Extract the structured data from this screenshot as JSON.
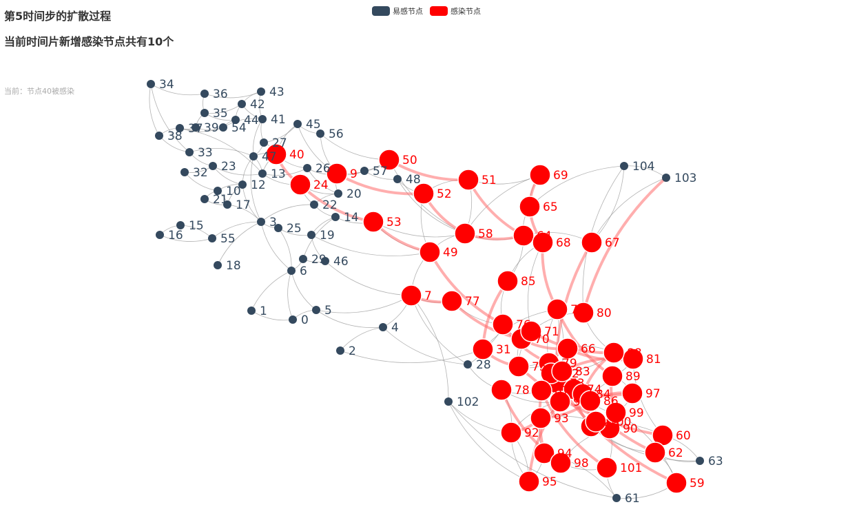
{
  "title": "第5时间步的扩散过程",
  "subtitle": "当前时间片新增感染节点共有10个",
  "status": "当前：节点40被感染",
  "legend": [
    {
      "name": "易感节点",
      "color": "#34495e"
    },
    {
      "name": "感染节点",
      "color": "#ff0000"
    }
  ],
  "colors": {
    "susceptible": "#34495e",
    "infected": "#ff0000",
    "edge": "#888888",
    "infection_edge": "#ff6b6b"
  },
  "nodes": [
    {
      "id": "0",
      "s": "S"
    },
    {
      "id": "1",
      "s": "S"
    },
    {
      "id": "2",
      "s": "S"
    },
    {
      "id": "3",
      "s": "S"
    },
    {
      "id": "4",
      "s": "S"
    },
    {
      "id": "5",
      "s": "S"
    },
    {
      "id": "6",
      "s": "S"
    },
    {
      "id": "7",
      "s": "I"
    },
    {
      "id": "9",
      "s": "I"
    },
    {
      "id": "10",
      "s": "S"
    },
    {
      "id": "12",
      "s": "S"
    },
    {
      "id": "13",
      "s": "S"
    },
    {
      "id": "14",
      "s": "S"
    },
    {
      "id": "15",
      "s": "S"
    },
    {
      "id": "16",
      "s": "S"
    },
    {
      "id": "17",
      "s": "S"
    },
    {
      "id": "18",
      "s": "S"
    },
    {
      "id": "19",
      "s": "S"
    },
    {
      "id": "20",
      "s": "S"
    },
    {
      "id": "21",
      "s": "S"
    },
    {
      "id": "22",
      "s": "S"
    },
    {
      "id": "23",
      "s": "S"
    },
    {
      "id": "24",
      "s": "I"
    },
    {
      "id": "25",
      "s": "S"
    },
    {
      "id": "26",
      "s": "S"
    },
    {
      "id": "27",
      "s": "S"
    },
    {
      "id": "28",
      "s": "S"
    },
    {
      "id": "29",
      "s": "S"
    },
    {
      "id": "31",
      "s": "I"
    },
    {
      "id": "32",
      "s": "S"
    },
    {
      "id": "33",
      "s": "S"
    },
    {
      "id": "34",
      "s": "S"
    },
    {
      "id": "35",
      "s": "S"
    },
    {
      "id": "36",
      "s": "S"
    },
    {
      "id": "37",
      "s": "S"
    },
    {
      "id": "38",
      "s": "S"
    },
    {
      "id": "39",
      "s": "S"
    },
    {
      "id": "40",
      "s": "I"
    },
    {
      "id": "41",
      "s": "S"
    },
    {
      "id": "42",
      "s": "S"
    },
    {
      "id": "43",
      "s": "S"
    },
    {
      "id": "44",
      "s": "S"
    },
    {
      "id": "45",
      "s": "S"
    },
    {
      "id": "46",
      "s": "S"
    },
    {
      "id": "47",
      "s": "S"
    },
    {
      "id": "48",
      "s": "S"
    },
    {
      "id": "49",
      "s": "I"
    },
    {
      "id": "50",
      "s": "I"
    },
    {
      "id": "51",
      "s": "I"
    },
    {
      "id": "52",
      "s": "I"
    },
    {
      "id": "53",
      "s": "I"
    },
    {
      "id": "54",
      "s": "S"
    },
    {
      "id": "55",
      "s": "S"
    },
    {
      "id": "56",
      "s": "S"
    },
    {
      "id": "57",
      "s": "S"
    },
    {
      "id": "58",
      "s": "I"
    },
    {
      "id": "59",
      "s": "I"
    },
    {
      "id": "60",
      "s": "I"
    },
    {
      "id": "61",
      "s": "S"
    },
    {
      "id": "62",
      "s": "I"
    },
    {
      "id": "63",
      "s": "S"
    },
    {
      "id": "64",
      "s": "I"
    },
    {
      "id": "65",
      "s": "I"
    },
    {
      "id": "66",
      "s": "I"
    },
    {
      "id": "67",
      "s": "I"
    },
    {
      "id": "68",
      "s": "I"
    },
    {
      "id": "69",
      "s": "I"
    },
    {
      "id": "70",
      "s": "I"
    },
    {
      "id": "71",
      "s": "I"
    },
    {
      "id": "72",
      "s": "I"
    },
    {
      "id": "73",
      "s": "I"
    },
    {
      "id": "74",
      "s": "I"
    },
    {
      "id": "75",
      "s": "I"
    },
    {
      "id": "76",
      "s": "I"
    },
    {
      "id": "77",
      "s": "I"
    },
    {
      "id": "78",
      "s": "I"
    },
    {
      "id": "79",
      "s": "I"
    },
    {
      "id": "80",
      "s": "I"
    },
    {
      "id": "81",
      "s": "I"
    },
    {
      "id": "82",
      "s": "I"
    },
    {
      "id": "83",
      "s": "I"
    },
    {
      "id": "84",
      "s": "I"
    },
    {
      "id": "85",
      "s": "I"
    },
    {
      "id": "86",
      "s": "I"
    },
    {
      "id": "87",
      "s": "I"
    },
    {
      "id": "88",
      "s": "I"
    },
    {
      "id": "89",
      "s": "I"
    },
    {
      "id": "90",
      "s": "I"
    },
    {
      "id": "91",
      "s": "I"
    },
    {
      "id": "92",
      "s": "I"
    },
    {
      "id": "93",
      "s": "I"
    },
    {
      "id": "94",
      "s": "I"
    },
    {
      "id": "95",
      "s": "I"
    },
    {
      "id": "96",
      "s": "I"
    },
    {
      "id": "97",
      "s": "I"
    },
    {
      "id": "98",
      "s": "I"
    },
    {
      "id": "99",
      "s": "I"
    },
    {
      "id": "100",
      "s": "I"
    },
    {
      "id": "101",
      "s": "I"
    },
    {
      "id": "102",
      "s": "S"
    },
    {
      "id": "103",
      "s": "S"
    },
    {
      "id": "104",
      "s": "S"
    }
  ],
  "edges": [
    [
      "34",
      "38"
    ],
    [
      "34",
      "36"
    ],
    [
      "34",
      "33"
    ],
    [
      "36",
      "43"
    ],
    [
      "36",
      "35"
    ],
    [
      "35",
      "42"
    ],
    [
      "35",
      "39"
    ],
    [
      "42",
      "44"
    ],
    [
      "42",
      "41"
    ],
    [
      "43",
      "41"
    ],
    [
      "41",
      "27"
    ],
    [
      "41",
      "54"
    ],
    [
      "44",
      "54"
    ],
    [
      "37",
      "39"
    ],
    [
      "39",
      "54"
    ],
    [
      "37",
      "38"
    ],
    [
      "38",
      "33"
    ],
    [
      "33",
      "23"
    ],
    [
      "32",
      "23"
    ],
    [
      "23",
      "13"
    ],
    [
      "13",
      "47"
    ],
    [
      "47",
      "27"
    ],
    [
      "27",
      "45"
    ],
    [
      "45",
      "56"
    ],
    [
      "45",
      "9"
    ],
    [
      "47",
      "12"
    ],
    [
      "12",
      "10"
    ],
    [
      "10",
      "21"
    ],
    [
      "21",
      "17"
    ],
    [
      "17",
      "10"
    ],
    [
      "12",
      "3"
    ],
    [
      "3",
      "25"
    ],
    [
      "25",
      "19"
    ],
    [
      "3",
      "55"
    ],
    [
      "55",
      "15"
    ],
    [
      "15",
      "16"
    ],
    [
      "16",
      "55"
    ],
    [
      "3",
      "18"
    ],
    [
      "3",
      "6"
    ],
    [
      "6",
      "29"
    ],
    [
      "29",
      "46"
    ],
    [
      "6",
      "1"
    ],
    [
      "6",
      "0"
    ],
    [
      "6",
      "5"
    ],
    [
      "5",
      "0"
    ],
    [
      "5",
      "4"
    ],
    [
      "4",
      "2"
    ],
    [
      "1",
      "0"
    ],
    [
      "13",
      "26"
    ],
    [
      "26",
      "20"
    ],
    [
      "20",
      "22"
    ],
    [
      "22",
      "14"
    ],
    [
      "14",
      "19"
    ],
    [
      "26",
      "9"
    ],
    [
      "9",
      "57"
    ],
    [
      "57",
      "48"
    ],
    [
      "48",
      "52"
    ],
    [
      "47",
      "3"
    ],
    [
      "12",
      "17"
    ],
    [
      "13",
      "24"
    ],
    [
      "24",
      "20"
    ],
    [
      "40",
      "26"
    ],
    [
      "40",
      "47"
    ],
    [
      "40",
      "27"
    ],
    [
      "13",
      "37"
    ],
    [
      "32",
      "10"
    ],
    [
      "23",
      "12"
    ],
    [
      "35",
      "44"
    ],
    [
      "37",
      "54"
    ],
    [
      "43",
      "42"
    ],
    [
      "41",
      "47"
    ],
    [
      "22",
      "3"
    ],
    [
      "14",
      "29"
    ],
    [
      "19",
      "46"
    ],
    [
      "6",
      "25"
    ],
    [
      "3",
      "17"
    ],
    [
      "45",
      "40"
    ],
    [
      "56",
      "9"
    ],
    [
      "9",
      "20"
    ],
    [
      "40",
      "13"
    ],
    [
      "24",
      "22"
    ],
    [
      "47",
      "33"
    ],
    [
      "58",
      "51"
    ],
    [
      "51",
      "69"
    ],
    [
      "69",
      "65"
    ],
    [
      "65",
      "64"
    ],
    [
      "64",
      "68"
    ],
    [
      "68",
      "71"
    ],
    [
      "67",
      "104"
    ],
    [
      "104",
      "80"
    ],
    [
      "103",
      "67"
    ],
    [
      "58",
      "64"
    ],
    [
      "58",
      "49"
    ],
    [
      "49",
      "7"
    ],
    [
      "7",
      "77"
    ],
    [
      "77",
      "76"
    ],
    [
      "85",
      "76"
    ],
    [
      "85",
      "64"
    ],
    [
      "7",
      "28"
    ],
    [
      "28",
      "31"
    ],
    [
      "4",
      "28"
    ],
    [
      "4",
      "7"
    ],
    [
      "102",
      "92"
    ],
    [
      "102",
      "7"
    ],
    [
      "102",
      "95"
    ],
    [
      "92",
      "95"
    ],
    [
      "95",
      "94"
    ],
    [
      "94",
      "98"
    ],
    [
      "98",
      "101"
    ],
    [
      "101",
      "61"
    ],
    [
      "61",
      "59"
    ],
    [
      "59",
      "62"
    ],
    [
      "62",
      "63"
    ],
    [
      "63",
      "60"
    ],
    [
      "60",
      "96"
    ],
    [
      "96",
      "99"
    ],
    [
      "99",
      "97"
    ],
    [
      "97",
      "89"
    ],
    [
      "89",
      "81"
    ],
    [
      "81",
      "88"
    ],
    [
      "88",
      "66"
    ],
    [
      "66",
      "83"
    ],
    [
      "83",
      "82"
    ],
    [
      "82",
      "79"
    ],
    [
      "79",
      "73"
    ],
    [
      "73",
      "74"
    ],
    [
      "74",
      "84"
    ],
    [
      "84",
      "86"
    ],
    [
      "86",
      "100"
    ],
    [
      "100",
      "90"
    ],
    [
      "90",
      "93"
    ],
    [
      "93",
      "91"
    ],
    [
      "91",
      "92"
    ],
    [
      "78",
      "87"
    ],
    [
      "87",
      "72"
    ],
    [
      "72",
      "31"
    ],
    [
      "31",
      "76"
    ],
    [
      "76",
      "70"
    ],
    [
      "70",
      "71"
    ],
    [
      "71",
      "75"
    ],
    [
      "75",
      "66"
    ],
    [
      "80",
      "71"
    ],
    [
      "80",
      "88"
    ],
    [
      "81",
      "60"
    ],
    [
      "96",
      "62"
    ],
    [
      "96",
      "63"
    ],
    [
      "59",
      "99"
    ],
    [
      "101",
      "90"
    ],
    [
      "61",
      "94"
    ],
    [
      "95",
      "92"
    ],
    [
      "92",
      "78"
    ],
    [
      "78",
      "91"
    ],
    [
      "91",
      "74"
    ],
    [
      "74",
      "83"
    ],
    [
      "73",
      "72"
    ],
    [
      "72",
      "79"
    ],
    [
      "70",
      "75"
    ],
    [
      "75",
      "79"
    ],
    [
      "79",
      "87"
    ],
    [
      "87",
      "73"
    ],
    [
      "86",
      "99"
    ],
    [
      "84",
      "89"
    ],
    [
      "83",
      "88"
    ],
    [
      "82",
      "66"
    ],
    [
      "100",
      "96"
    ],
    [
      "90",
      "98"
    ],
    [
      "93",
      "94"
    ],
    [
      "102",
      "61"
    ],
    [
      "28",
      "78"
    ],
    [
      "48",
      "58"
    ],
    [
      "50",
      "58"
    ],
    [
      "52",
      "49"
    ],
    [
      "53",
      "49"
    ],
    [
      "14",
      "53"
    ],
    [
      "19",
      "49"
    ],
    [
      "46",
      "7"
    ],
    [
      "53",
      "58"
    ],
    [
      "57",
      "50"
    ],
    [
      "9",
      "50"
    ],
    [
      "56",
      "50"
    ],
    [
      "104",
      "65"
    ],
    [
      "103",
      "104"
    ],
    [
      "69",
      "58"
    ],
    [
      "51",
      "52"
    ],
    [
      "67",
      "64"
    ],
    [
      "68",
      "85"
    ],
    [
      "2",
      "31"
    ],
    [
      "5",
      "7"
    ]
  ],
  "infection_edges": [
    [
      "40",
      "24"
    ],
    [
      "24",
      "53"
    ],
    [
      "9",
      "52"
    ],
    [
      "50",
      "51"
    ],
    [
      "52",
      "58"
    ],
    [
      "53",
      "49"
    ],
    [
      "49",
      "76"
    ],
    [
      "7",
      "77"
    ],
    [
      "77",
      "70"
    ],
    [
      "58",
      "64"
    ],
    [
      "51",
      "64"
    ],
    [
      "69",
      "65"
    ],
    [
      "65",
      "68"
    ],
    [
      "68",
      "72"
    ],
    [
      "67",
      "73"
    ],
    [
      "103",
      "80"
    ],
    [
      "85",
      "31"
    ],
    [
      "31",
      "75"
    ],
    [
      "76",
      "79"
    ],
    [
      "70",
      "66"
    ],
    [
      "71",
      "88"
    ],
    [
      "72",
      "89"
    ],
    [
      "66",
      "81"
    ],
    [
      "73",
      "97"
    ],
    [
      "74",
      "96"
    ],
    [
      "75",
      "60"
    ],
    [
      "82",
      "59"
    ],
    [
      "83",
      "62"
    ],
    [
      "84",
      "100"
    ],
    [
      "86",
      "90"
    ],
    [
      "87",
      "101"
    ],
    [
      "78",
      "98"
    ],
    [
      "79",
      "94"
    ],
    [
      "92",
      "93"
    ],
    [
      "91",
      "95"
    ],
    [
      "93",
      "86"
    ],
    [
      "89",
      "99"
    ],
    [
      "88",
      "84"
    ],
    [
      "81",
      "83"
    ],
    [
      "97",
      "86"
    ]
  ]
}
